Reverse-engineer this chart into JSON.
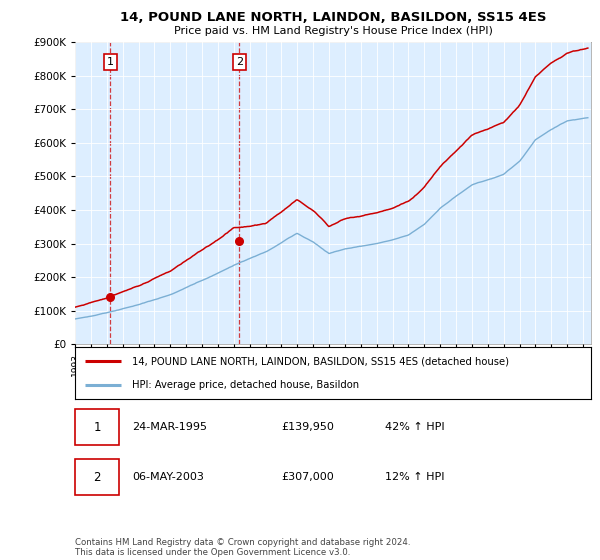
{
  "title": "14, POUND LANE NORTH, LAINDON, BASILDON, SS15 4ES",
  "subtitle": "Price paid vs. HM Land Registry's House Price Index (HPI)",
  "legend_line1": "14, POUND LANE NORTH, LAINDON, BASILDON, SS15 4ES (detached house)",
  "legend_line2": "HPI: Average price, detached house, Basildon",
  "annotation1_label": "1",
  "annotation1_date": "24-MAR-1995",
  "annotation1_price": "£139,950",
  "annotation1_hpi": "42% ↑ HPI",
  "annotation2_label": "2",
  "annotation2_date": "06-MAY-2003",
  "annotation2_price": "£307,000",
  "annotation2_hpi": "12% ↑ HPI",
  "footer": "Contains HM Land Registry data © Crown copyright and database right 2024.\nThis data is licensed under the Open Government Licence v3.0.",
  "price_line_color": "#cc0000",
  "hpi_line_color": "#7bafd4",
  "background_plot": "#ddeeff",
  "ylim": [
    0,
    900000
  ],
  "yticks": [
    0,
    100000,
    200000,
    300000,
    400000,
    500000,
    600000,
    700000,
    800000,
    900000
  ],
  "sale1_x": 1995.22,
  "sale1_y": 139950,
  "sale2_x": 2003.35,
  "sale2_y": 307000,
  "xmin": 1993,
  "xmax": 2025.5
}
